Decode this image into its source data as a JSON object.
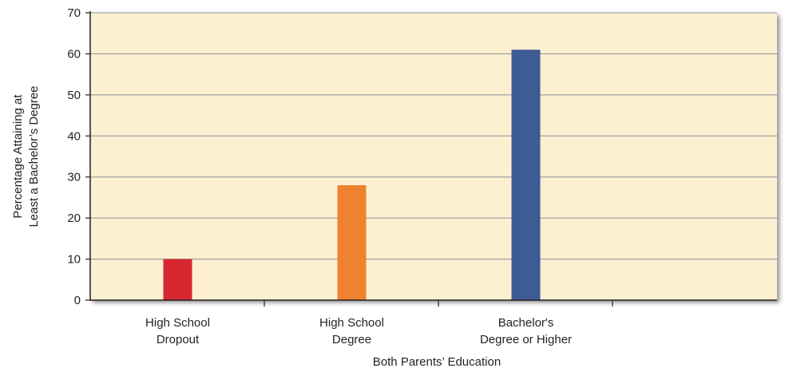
{
  "chart_data": {
    "type": "bar",
    "categories": [
      [
        "High School",
        "Dropout"
      ],
      [
        "High School",
        "Degree"
      ],
      [
        "Bachelor's",
        "Degree or Higher"
      ]
    ],
    "values": [
      10,
      28,
      61
    ],
    "colors": [
      "#d7282f",
      "#ee8231",
      "#3d5c95"
    ],
    "ylabel": [
      "Percentage Attaining at",
      "Least a Bachelor’s Degree"
    ],
    "xlabel": "Both Parents’ Education",
    "ylim": [
      0,
      70
    ],
    "yticks": [
      0,
      10,
      20,
      30,
      40,
      50,
      60,
      70
    ],
    "grid": true,
    "plot_background": "#fdf0d0",
    "gridline_color": "#8a9099",
    "axis_color": "#231f20"
  }
}
